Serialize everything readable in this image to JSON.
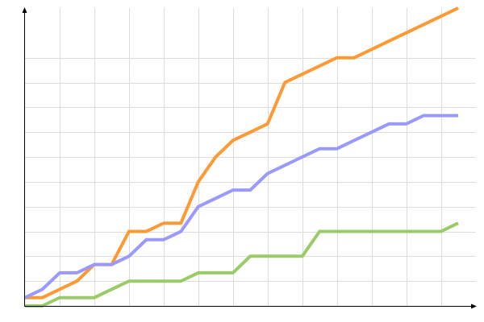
{
  "chart_data": {
    "type": "line",
    "title": "",
    "xlabel": "",
    "ylabel": "",
    "x": [
      0,
      1,
      2,
      3,
      4,
      5,
      6,
      7,
      8,
      9,
      10,
      11,
      12,
      13,
      14,
      15,
      16,
      17,
      18,
      19,
      20,
      21,
      22,
      23,
      24,
      25
    ],
    "xlim": [
      0,
      25
    ],
    "ylim": [
      0,
      36
    ],
    "x_grid_step": 2,
    "y_grid_step": 3,
    "grid": true,
    "legend": "none",
    "series": [
      {
        "color": "#ff9933",
        "values": [
          1,
          1,
          2,
          3,
          5,
          5,
          9,
          9,
          10,
          10,
          15,
          18,
          20,
          21,
          22,
          27,
          28,
          29,
          30,
          30,
          31,
          32,
          33,
          34,
          35,
          36
        ]
      },
      {
        "color": "#9999ff",
        "values": [
          1,
          2,
          4,
          4,
          5,
          5,
          6,
          8,
          8,
          9,
          12,
          13,
          14,
          14,
          16,
          17,
          18,
          19,
          19,
          20,
          21,
          22,
          22,
          23,
          23,
          23
        ]
      },
      {
        "color": "#99cc66",
        "values": [
          0,
          0,
          1,
          1,
          1,
          2,
          3,
          3,
          3,
          3,
          4,
          4,
          4,
          6,
          6,
          6,
          6,
          9,
          9,
          9,
          9,
          9,
          9,
          9,
          9,
          10
        ]
      }
    ],
    "colors": {
      "grid": "#dddddd",
      "axis": "#000000"
    }
  }
}
